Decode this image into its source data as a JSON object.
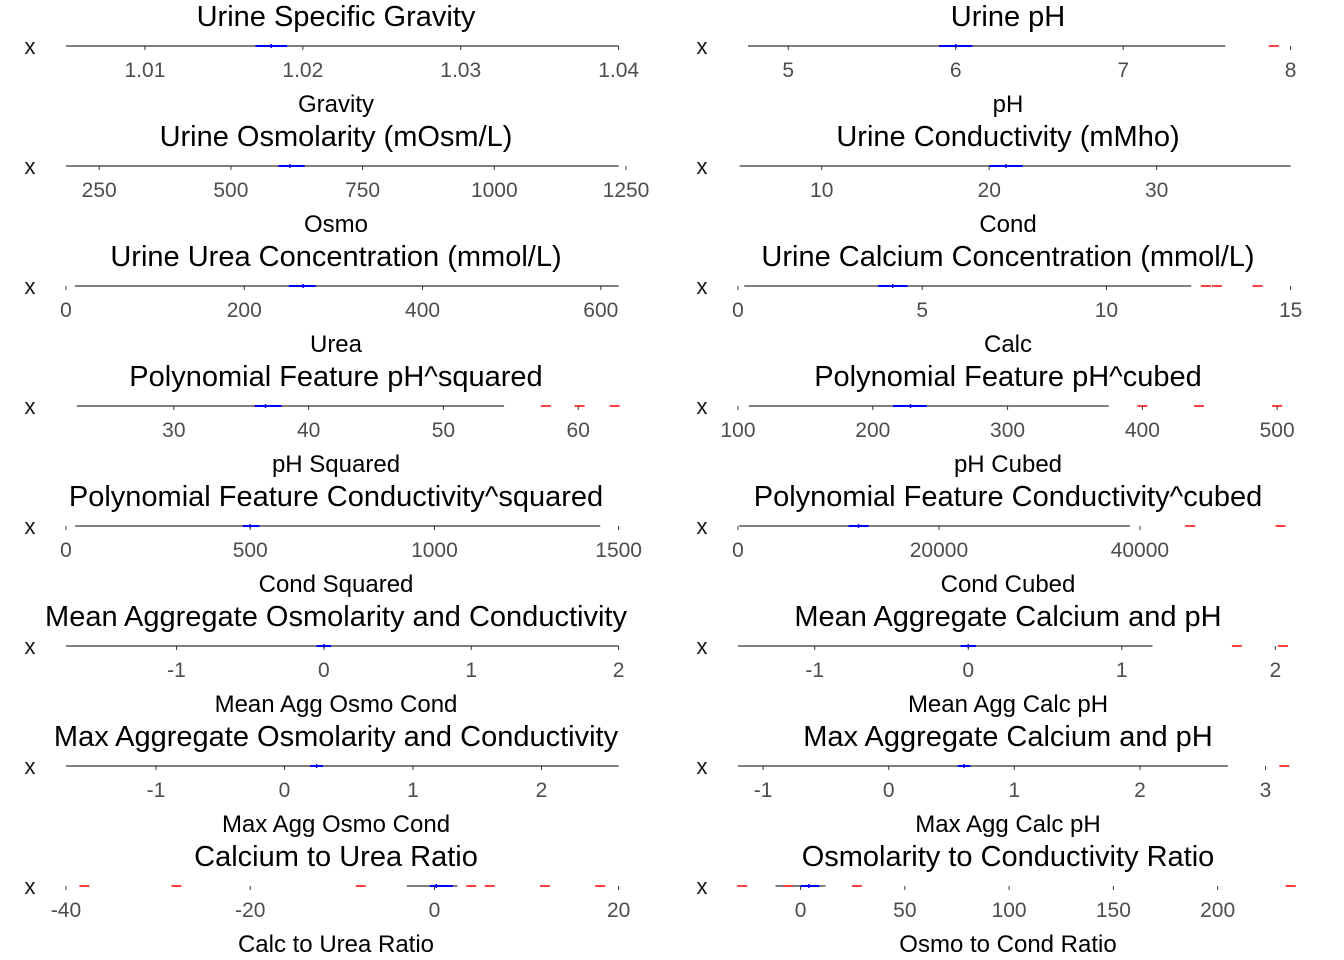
{
  "chart_data": [
    {
      "type": "boxplot",
      "title": "Urine Specific Gravity",
      "xlabel": "Gravity",
      "ylabel": "x",
      "xlim": [
        1.005,
        1.04
      ],
      "ticks": [
        1.01,
        1.02,
        1.03,
        1.04
      ],
      "tick_labels": [
        "1.01",
        "1.02",
        "1.03",
        "1.04"
      ],
      "whisker": [
        1.005,
        1.04
      ],
      "box": [
        1.017,
        1.019
      ],
      "median": 1.018,
      "outliers": []
    },
    {
      "type": "boxplot",
      "title": "Urine pH",
      "xlabel": "pH",
      "ylabel": "x",
      "xlim": [
        4.7,
        8.0
      ],
      "ticks": [
        5,
        6,
        7,
        8
      ],
      "tick_labels": [
        "5",
        "6",
        "7",
        "8"
      ],
      "whisker": [
        4.76,
        7.61
      ],
      "box": [
        5.9,
        6.1
      ],
      "median": 6.0,
      "outliers": [
        7.9
      ]
    },
    {
      "type": "boxplot",
      "title": "Urine Osmolarity (mOsm/L)",
      "xlabel": "Osmo",
      "ylabel": "x",
      "xlim": [
        187,
        1236
      ],
      "ticks": [
        250,
        500,
        750,
        1000,
        1250
      ],
      "tick_labels": [
        "250",
        "500",
        "750",
        "1000",
        "1250"
      ],
      "whisker": [
        187,
        1236
      ],
      "box": [
        590,
        640
      ],
      "median": 612,
      "outliers": []
    },
    {
      "type": "boxplot",
      "title": "Urine Conductivity (mMho)",
      "xlabel": "Cond",
      "ylabel": "x",
      "xlim": [
        5,
        38
      ],
      "ticks": [
        10,
        20,
        30
      ],
      "tick_labels": [
        "10",
        "20",
        "30"
      ],
      "whisker": [
        5.1,
        38
      ],
      "box": [
        20,
        22
      ],
      "median": 21,
      "outliers": []
    },
    {
      "type": "boxplot",
      "title": "Urine Urea Concentration (mmol/L)",
      "xlabel": "Urea",
      "ylabel": "x",
      "xlim": [
        0,
        620
      ],
      "ticks": [
        0,
        200,
        400,
        600
      ],
      "tick_labels": [
        "0",
        "200",
        "400",
        "600"
      ],
      "whisker": [
        10,
        620
      ],
      "box": [
        250,
        280
      ],
      "median": 266,
      "outliers": []
    },
    {
      "type": "boxplot",
      "title": "Urine Calcium Concentration (mmol/L)",
      "xlabel": "Calc",
      "ylabel": "x",
      "xlim": [
        0,
        15
      ],
      "ticks": [
        0,
        5,
        10,
        15
      ],
      "tick_labels": [
        "0",
        "5",
        "10",
        "15"
      ],
      "whisker": [
        0.17,
        12.3
      ],
      "box": [
        3.8,
        4.6
      ],
      "median": 4.2,
      "outliers": [
        12.7,
        13.0,
        14.1
      ]
    },
    {
      "type": "boxplot",
      "title": "Polynomial Feature pH^squared",
      "xlabel": "pH Squared",
      "ylabel": "x",
      "xlim": [
        22,
        63
      ],
      "ticks": [
        30,
        40,
        50,
        60
      ],
      "tick_labels": [
        "30",
        "40",
        "50",
        "60"
      ],
      "whisker": [
        22.8,
        54.5
      ],
      "box": [
        36,
        38
      ],
      "median": 36.8,
      "outliers": [
        57.6,
        60.1,
        62.7
      ]
    },
    {
      "type": "boxplot",
      "title": "Polynomial Feature pH^cubed",
      "xlabel": "pH Cubed",
      "ylabel": "x",
      "xlim": [
        100,
        510
      ],
      "ticks": [
        100,
        200,
        300,
        400,
        500
      ],
      "tick_labels": [
        "100",
        "200",
        "300",
        "400",
        "500"
      ],
      "whisker": [
        108,
        375
      ],
      "box": [
        215,
        240
      ],
      "median": 228,
      "outliers": [
        400,
        442,
        500
      ]
    },
    {
      "type": "boxplot",
      "title": "Polynomial Feature Conductivity^squared",
      "xlabel": "Cond Squared",
      "ylabel": "x",
      "xlim": [
        0,
        1500
      ],
      "ticks": [
        0,
        500,
        1000,
        1500
      ],
      "tick_labels": [
        "0",
        "500",
        "1000",
        "1500"
      ],
      "whisker": [
        25,
        1450
      ],
      "box": [
        480,
        525
      ],
      "median": 500,
      "outliers": []
    },
    {
      "type": "boxplot",
      "title": "Polynomial Feature Conductivity^cubed",
      "xlabel": "Cond Cubed",
      "ylabel": "x",
      "xlim": [
        0,
        55000
      ],
      "ticks": [
        0,
        20000,
        40000
      ],
      "tick_labels": [
        "0",
        "20000",
        "40000"
      ],
      "whisker": [
        125,
        39000
      ],
      "box": [
        11000,
        13000
      ],
      "median": 12000,
      "outliers": [
        45000,
        54000
      ]
    },
    {
      "type": "boxplot",
      "title": "Mean Aggregate Osmolarity and Conductivity",
      "xlabel": "Mean Agg Osmo Cond",
      "ylabel": "x",
      "xlim": [
        -1.75,
        2.0
      ],
      "ticks": [
        -1,
        0,
        1,
        2
      ],
      "tick_labels": [
        "-1",
        "0",
        "1",
        "2"
      ],
      "whisker": [
        -1.75,
        2.0
      ],
      "box": [
        -0.05,
        0.05
      ],
      "median": 0.0,
      "outliers": []
    },
    {
      "type": "boxplot",
      "title": "Mean Aggregate Calcium and pH",
      "xlabel": "Mean Agg Calc pH",
      "ylabel": "x",
      "xlim": [
        -1.5,
        2.1
      ],
      "ticks": [
        -1,
        0,
        1,
        2
      ],
      "tick_labels": [
        "-1",
        "0",
        "1",
        "2"
      ],
      "whisker": [
        -1.5,
        1.2
      ],
      "box": [
        -0.05,
        0.05
      ],
      "median": 0.0,
      "outliers": [
        1.75,
        2.05
      ]
    },
    {
      "type": "boxplot",
      "title": "Max Aggregate Osmolarity and Conductivity",
      "xlabel": "Max Agg Osmo Cond",
      "ylabel": "x",
      "xlim": [
        -1.7,
        2.6
      ],
      "ticks": [
        -1,
        0,
        1,
        2
      ],
      "tick_labels": [
        "-1",
        "0",
        "1",
        "2"
      ],
      "whisker": [
        -1.7,
        2.6
      ],
      "box": [
        0.2,
        0.3
      ],
      "median": 0.25,
      "outliers": []
    },
    {
      "type": "boxplot",
      "title": "Max Aggregate Calcium and pH",
      "xlabel": "Max Agg Calc pH",
      "ylabel": "x",
      "xlim": [
        -1.2,
        3.2
      ],
      "ticks": [
        -1,
        0,
        1,
        2,
        3
      ],
      "tick_labels": [
        "-1",
        "0",
        "1",
        "2",
        "3"
      ],
      "whisker": [
        -1.2,
        2.7
      ],
      "box": [
        0.55,
        0.65
      ],
      "median": 0.6,
      "outliers": [
        3.15
      ]
    },
    {
      "type": "boxplot",
      "title": "Calcium to Urea Ratio",
      "xlabel": "Calc to Urea Ratio",
      "ylabel": "x",
      "xlim": [
        -40,
        20
      ],
      "ticks": [
        -40,
        -20,
        0,
        20
      ],
      "tick_labels": [
        "-40",
        "-20",
        "0",
        "20"
      ],
      "whisker": [
        -3,
        2.5
      ],
      "box": [
        -0.5,
        2
      ],
      "median": 0.2,
      "outliers": [
        -38,
        -28,
        -8,
        4,
        6,
        12,
        18
      ]
    },
    {
      "type": "boxplot",
      "title": "Osmolarity to Conductivity Ratio",
      "xlabel": "Osmo to Cond Ratio",
      "ylabel": "x",
      "xlim": [
        -30,
        235
      ],
      "ticks": [
        0,
        50,
        100,
        150,
        200
      ],
      "tick_labels": [
        "0",
        "50",
        "100",
        "150",
        "200"
      ],
      "whisker": [
        -12,
        12
      ],
      "box": [
        0,
        9
      ],
      "median": 4,
      "outliers": [
        -28,
        -6,
        27,
        235
      ]
    }
  ],
  "colors": {
    "whisker": "#000000",
    "box": "#0000ff",
    "median": "#0000ff",
    "outlier": "#ff0000",
    "tick": "#4d4d4d",
    "text": "#000000"
  }
}
